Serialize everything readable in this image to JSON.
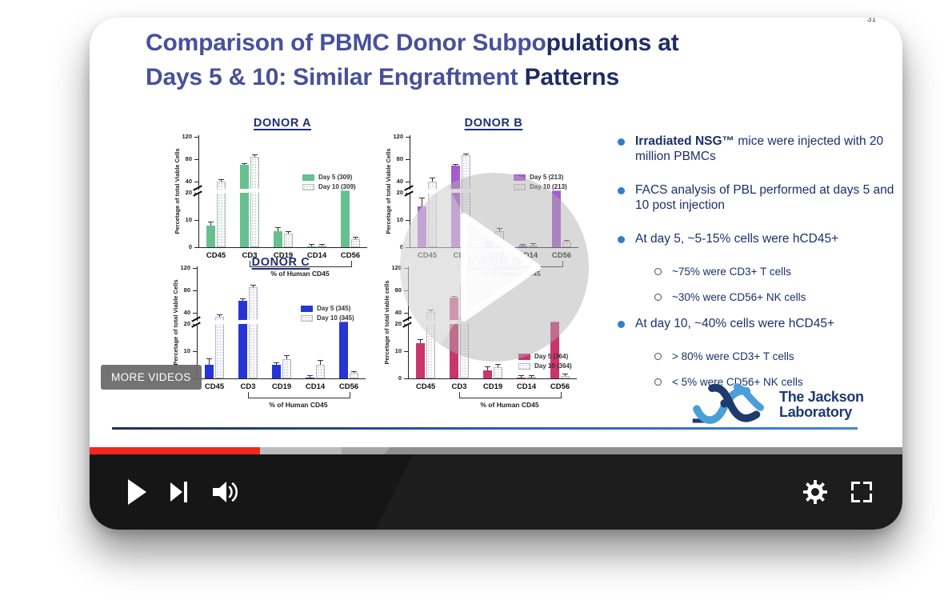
{
  "page": {
    "slide_number": "31"
  },
  "player": {
    "more_videos_label": "MORE VIDEOS",
    "controls": [
      "play",
      "next",
      "volume",
      "settings",
      "fullscreen"
    ],
    "progress": {
      "played_pct": 21,
      "buffered_pct": 31,
      "seam_pct": 37,
      "played_color": "#f4271f",
      "buffered_color": "#bcbcbc",
      "mid_color": "#a6a6a6",
      "rest_color": "#8f8f8f"
    }
  },
  "slide": {
    "title": {
      "line1_a": "Comparison of PBMC Donor Subpo",
      "line1_b": "pulations at",
      "line2_a": "Days 5 & 10: Similar Engraftment ",
      "line2_b": "Patterns"
    },
    "bullets": [
      {
        "bold": "Irradiated NSG™",
        "text": " mice were injected with 20 million PBMCs",
        "children": []
      },
      {
        "bold": "",
        "text": "FACS analysis of PBL performed at days 5 and 10 post injection",
        "children": []
      },
      {
        "bold": "",
        "text": "At day 5, ~5-15% cells were hCD45+",
        "children": [
          "~75% were CD3+ T cells",
          "~30% were CD56+ NK cells"
        ]
      },
      {
        "bold": "",
        "text": "At day 10, ~40% cells were hCD45+",
        "children": [
          "> 80% were CD3+ T cells",
          "< 5% were CD56+ NK cells"
        ]
      }
    ],
    "logo": {
      "line1": "The Jackson",
      "line2": "Laboratory",
      "light_blue": "#4b9fd8",
      "navy": "#1e3a6e"
    }
  },
  "chart_data": [
    {
      "type": "bar",
      "title": "DONOR A",
      "ylabel": "Percetage of total Viable Cells",
      "xlabel": "% of Human CD45",
      "categories": [
        "CD45",
        "CD3",
        "CD19",
        "CD14",
        "CD56"
      ],
      "ylim": [
        0,
        120
      ],
      "yticks": [
        0,
        10,
        20,
        40,
        80,
        120
      ],
      "axis_break_between": [
        20,
        40
      ],
      "legend_pos": "top",
      "colors": {
        "day5": "#66c08f",
        "dot": "#a8d4ba"
      },
      "series": [
        {
          "name": "Day 5 (309)",
          "values": [
            8,
            70,
            6,
            0.3,
            26
          ],
          "errors": [
            1,
            2,
            1.2,
            0.2,
            2
          ]
        },
        {
          "name": "Day 10 (309)",
          "values": [
            40,
            85,
            5,
            0.5,
            3
          ],
          "errors": [
            3,
            1.5,
            0.7,
            0.2,
            0.5
          ]
        }
      ]
    },
    {
      "type": "bar",
      "title": "DONOR B",
      "ylabel": "Percetage of total Viable Cells",
      "xlabel": "% of Human CD45",
      "categories": [
        "CD45",
        "CD3",
        "CD19",
        "CD14",
        "CD56"
      ],
      "ylim": [
        0,
        120
      ],
      "yticks": [
        0,
        10,
        20,
        40,
        80,
        120
      ],
      "axis_break_between": [
        20,
        40
      ],
      "legend_pos": "top",
      "colors": {
        "day5": "#a55ccd",
        "dot": "#d6c0e8"
      },
      "series": [
        {
          "name": "Day 5 (213)",
          "values": [
            15,
            68,
            2,
            0.5,
            26
          ],
          "errors": [
            3,
            1.5,
            0.4,
            0.2,
            1.5
          ]
        },
        {
          "name": "Day 10 (213)",
          "values": [
            40,
            87,
            6,
            0.7,
            2
          ],
          "errors": [
            6,
            1,
            0.8,
            0.2,
            0.4
          ]
        }
      ]
    },
    {
      "type": "bar",
      "title": "DONOR C",
      "ylabel": "Percetage of total Viable Cells",
      "xlabel": "% of Human CD45",
      "categories": [
        "CD45",
        "CD3",
        "CD19",
        "CD14",
        "CD56"
      ],
      "ylim": [
        0,
        120
      ],
      "yticks": [
        0,
        10,
        20,
        40,
        80,
        120
      ],
      "axis_break_between": [
        20,
        40
      ],
      "legend_pos": "top",
      "colors": {
        "day5": "#2636d4",
        "dot": "#bcc4f2"
      },
      "series": [
        {
          "name": "Day 5 (345)",
          "values": [
            5,
            62,
            5,
            0.3,
            28
          ],
          "errors": [
            2,
            2,
            0.6,
            0.2,
            1
          ]
        },
        {
          "name": "Day 10 (345)",
          "values": [
            33,
            86,
            7,
            5,
            2
          ],
          "errors": [
            2,
            1,
            1.2,
            1.5,
            0.4
          ]
        }
      ]
    },
    {
      "type": "bar",
      "title": "DONOR D",
      "ylabel": "Percetage of total viable cells",
      "xlabel": "% of Human CD45",
      "categories": [
        "CD45",
        "CD3",
        "CD19",
        "CD14",
        "CD56"
      ],
      "ylim": [
        0,
        120
      ],
      "yticks": [
        0,
        10,
        20,
        40,
        80,
        120
      ],
      "axis_break_between": [
        20,
        40
      ],
      "legend_pos": "mid",
      "colors": {
        "day5": "#c9356d",
        "dot": "#dfc9d6"
      },
      "series": [
        {
          "name": "Day 5 (364)",
          "values": [
            13,
            67,
            3,
            0.3,
            25
          ],
          "errors": [
            1,
            1.5,
            1,
            0.15,
            1
          ]
        },
        {
          "name": "Day 10 (364)",
          "values": [
            41,
            90,
            4,
            0.3,
            1
          ],
          "errors": [
            3,
            1,
            1,
            0.15,
            0.3
          ]
        }
      ]
    }
  ]
}
